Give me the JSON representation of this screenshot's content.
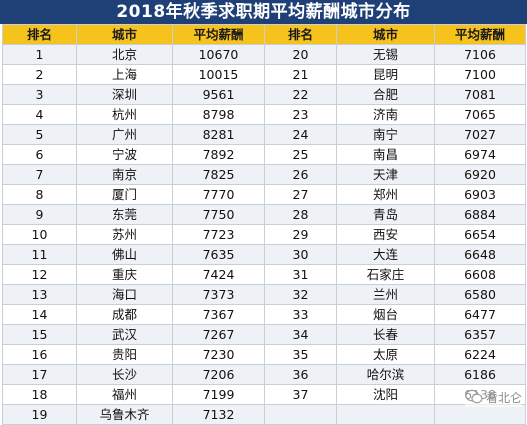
{
  "title": "2018年秋季求职期平均薪酬城市分布",
  "headers": [
    "排名",
    "城市",
    "平均薪酬",
    "排名",
    "城市",
    "平均薪酬"
  ],
  "left": [
    {
      "rank": "1",
      "city": "北京",
      "salary": "10670"
    },
    {
      "rank": "2",
      "city": "上海",
      "salary": "10015"
    },
    {
      "rank": "3",
      "city": "深圳",
      "salary": "9561"
    },
    {
      "rank": "4",
      "city": "杭州",
      "salary": "8798"
    },
    {
      "rank": "5",
      "city": "广州",
      "salary": "8281"
    },
    {
      "rank": "6",
      "city": "宁波",
      "salary": "7892"
    },
    {
      "rank": "7",
      "city": "南京",
      "salary": "7825"
    },
    {
      "rank": "8",
      "city": "厦门",
      "salary": "7770"
    },
    {
      "rank": "9",
      "city": "东莞",
      "salary": "7750"
    },
    {
      "rank": "10",
      "city": "苏州",
      "salary": "7723"
    },
    {
      "rank": "11",
      "city": "佛山",
      "salary": "7635"
    },
    {
      "rank": "12",
      "city": "重庆",
      "salary": "7424"
    },
    {
      "rank": "13",
      "city": "海口",
      "salary": "7373"
    },
    {
      "rank": "14",
      "city": "成都",
      "salary": "7367"
    },
    {
      "rank": "15",
      "city": "武汉",
      "salary": "7267"
    },
    {
      "rank": "16",
      "city": "贵阳",
      "salary": "7230"
    },
    {
      "rank": "17",
      "city": "长沙",
      "salary": "7206"
    },
    {
      "rank": "18",
      "city": "福州",
      "salary": "7199"
    },
    {
      "rank": "19",
      "city": "乌鲁木齐",
      "salary": "7132"
    }
  ],
  "right": [
    {
      "rank": "20",
      "city": "无锡",
      "salary": "7106"
    },
    {
      "rank": "21",
      "city": "昆明",
      "salary": "7100"
    },
    {
      "rank": "22",
      "city": "合肥",
      "salary": "7081"
    },
    {
      "rank": "23",
      "city": "济南",
      "salary": "7065"
    },
    {
      "rank": "24",
      "city": "南宁",
      "salary": "7027"
    },
    {
      "rank": "25",
      "city": "南昌",
      "salary": "6974"
    },
    {
      "rank": "26",
      "city": "天津",
      "salary": "6920"
    },
    {
      "rank": "27",
      "city": "郑州",
      "salary": "6903"
    },
    {
      "rank": "28",
      "city": "青岛",
      "salary": "6884"
    },
    {
      "rank": "29",
      "city": "西安",
      "salary": "6654"
    },
    {
      "rank": "30",
      "city": "大连",
      "salary": "6648"
    },
    {
      "rank": "31",
      "city": "石家庄",
      "salary": "6608"
    },
    {
      "rank": "32",
      "city": "兰州",
      "salary": "6580"
    },
    {
      "rank": "33",
      "city": "烟台",
      "salary": "6477"
    },
    {
      "rank": "34",
      "city": "长春",
      "salary": "6357"
    },
    {
      "rank": "35",
      "city": "太原",
      "salary": "6224"
    },
    {
      "rank": "36",
      "city": "哈尔滨",
      "salary": "6186"
    },
    {
      "rank": "37",
      "city": "沈阳",
      "salary": "6138"
    },
    {
      "rank": "",
      "city": "",
      "salary": ""
    }
  ],
  "watermark": {
    "text": "看北仑",
    "icon": "wechat-bubble-icon"
  },
  "colors": {
    "banner": "#1f3f77",
    "header": "#f6c21c",
    "stripe": "#eef1f6"
  }
}
